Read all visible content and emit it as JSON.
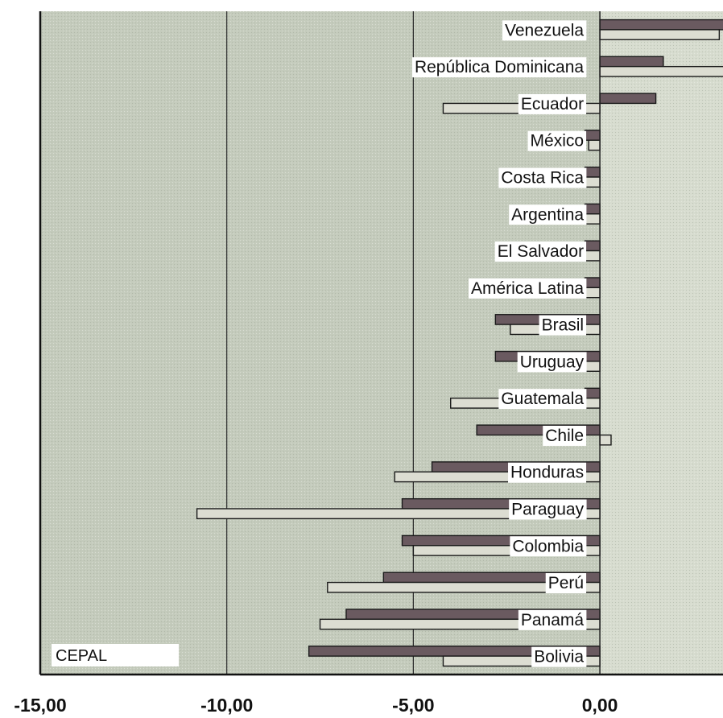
{
  "chart_data": {
    "type": "bar",
    "orientation": "horizontal",
    "categories": [
      "Venezuela",
      "República Dominicana",
      "Ecuador",
      "México",
      "Costa Rica",
      "Argentina",
      "El Salvador",
      "América Latina",
      "Brasil",
      "Uruguay",
      "Guatemala",
      "Chile",
      "Honduras",
      "Paraguay",
      "Colombia",
      "Perú",
      "Panamá",
      "Bolivia"
    ],
    "series": [
      {
        "values": [
          4.0,
          1.7,
          1.5,
          -0.4,
          -0.4,
          -0.4,
          -0.4,
          -0.4,
          -2.8,
          -2.8,
          -0.4,
          -3.3,
          -4.5,
          -5.3,
          -5.3,
          -5.8,
          -6.8,
          -7.8
        ]
      },
      {
        "values": [
          3.2,
          3.6,
          -4.2,
          -0.3,
          -0.4,
          -0.4,
          -0.4,
          -0.4,
          -2.4,
          -0.4,
          -4.0,
          0.3,
          -5.5,
          -10.8,
          -5.0,
          -7.3,
          -7.5,
          -4.2
        ]
      }
    ],
    "xlim": [
      -15,
      3.3
    ],
    "x_ticks": [
      "-15,00",
      "-10,00",
      "-5,00",
      "0,00"
    ],
    "grid": "vertical",
    "annotation": "CEPAL",
    "colors": {
      "plot_bg": "#c4cbbc",
      "positive_bg": "#d7dccf",
      "series_1": "#6a5a60",
      "series_2": "#dcddd2",
      "bar_border": "#1a1a1a",
      "label_bg": "#ffffff"
    }
  }
}
